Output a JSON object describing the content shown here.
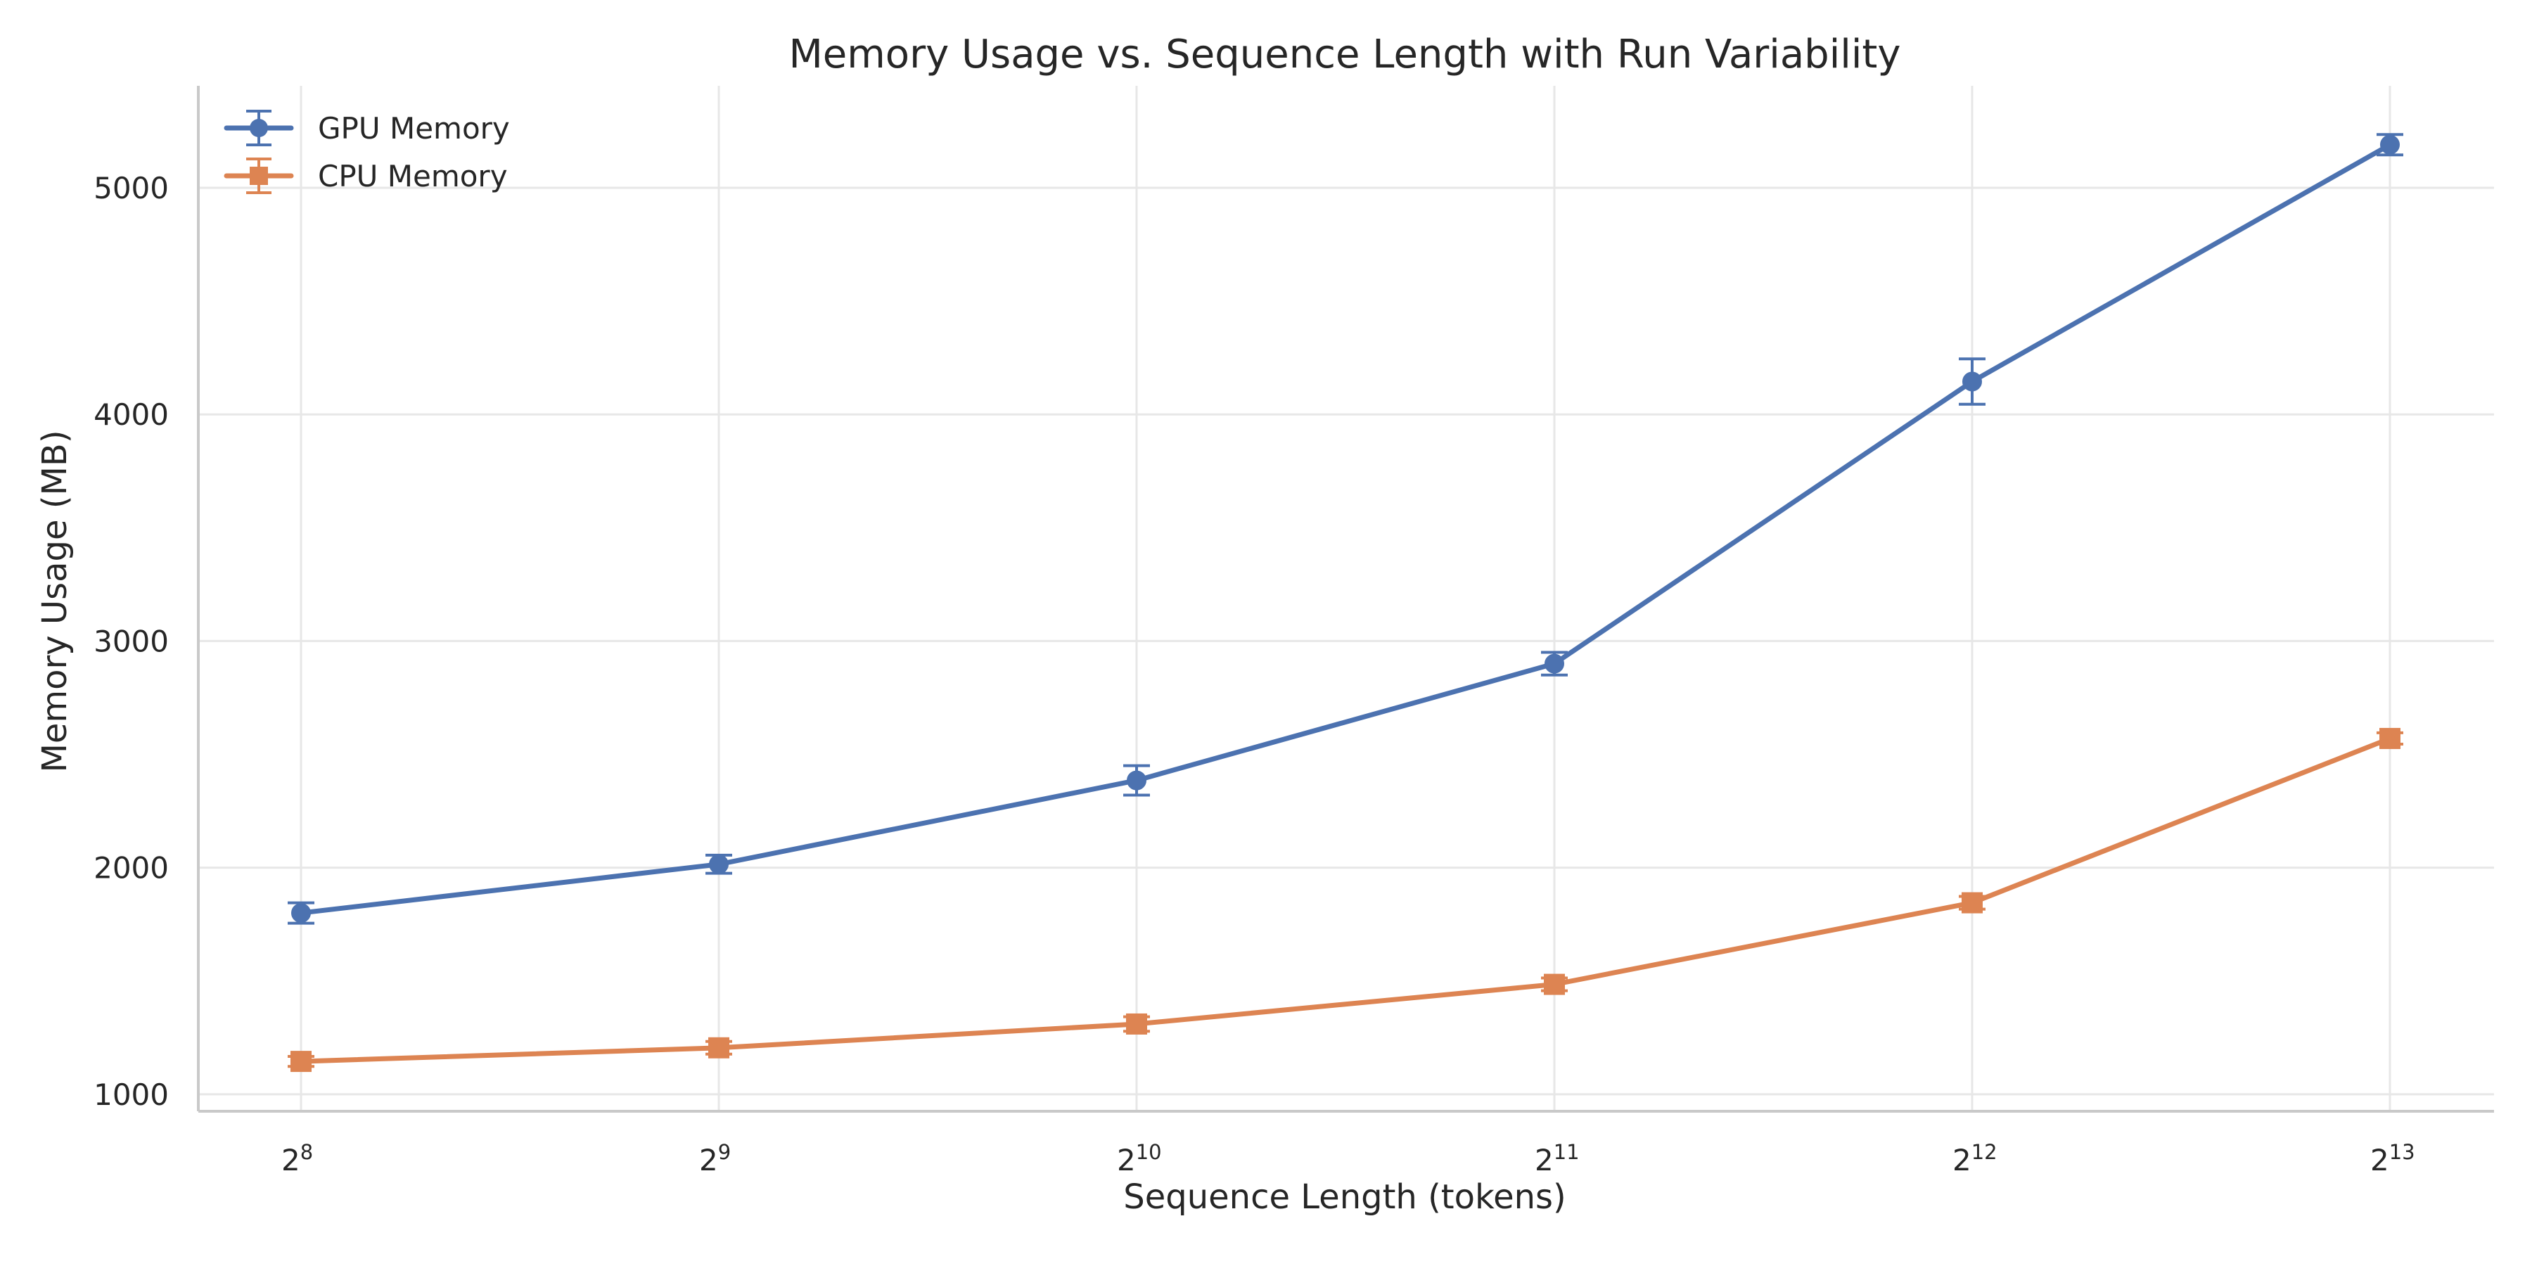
{
  "chart_data": {
    "type": "line",
    "title": "Memory Usage vs. Sequence Length with Run Variability",
    "xlabel": "Sequence Length (tokens)",
    "ylabel": "Memory Usage (MB)",
    "x_scale": "log2",
    "x": [
      256,
      512,
      1024,
      2048,
      4096,
      8192
    ],
    "x_tick_labels": [
      {
        "base": "2",
        "exp": "8"
      },
      {
        "base": "2",
        "exp": "9"
      },
      {
        "base": "2",
        "exp": "10"
      },
      {
        "base": "2",
        "exp": "11"
      },
      {
        "base": "2",
        "exp": "12"
      },
      {
        "base": "2",
        "exp": "13"
      }
    ],
    "y_ticks": [
      "1000",
      "2000",
      "3000",
      "4000",
      "5000"
    ],
    "y_tick_values": [
      1000,
      2000,
      3000,
      4000,
      5000
    ],
    "ylim": [
      925,
      5450
    ],
    "grid": true,
    "legend_position": "top-left",
    "series": [
      {
        "name": "GPU Memory",
        "color": "#4c72b0",
        "marker": "circle",
        "values": [
          1800,
          2015,
          2385,
          2900,
          4145,
          5190
        ],
        "errors": [
          45,
          40,
          65,
          50,
          100,
          45
        ]
      },
      {
        "name": "CPU Memory",
        "color": "#dd8452",
        "marker": "square",
        "values": [
          1145,
          1205,
          1310,
          1485,
          1845,
          2570
        ],
        "errors": [
          22,
          28,
          32,
          28,
          28,
          25
        ]
      }
    ]
  }
}
